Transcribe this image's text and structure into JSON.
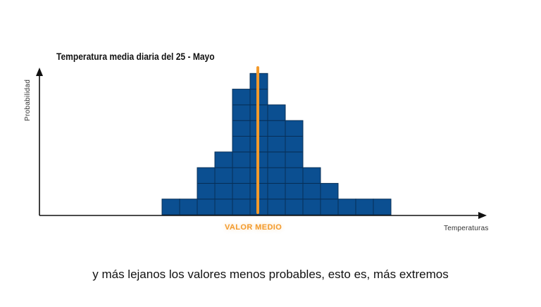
{
  "chart_data": {
    "type": "bar",
    "title": "Temperatura media diaria del 25 - Mayo",
    "ylabel": "Probabilidad",
    "xlabel": "Temperaturas",
    "categories": [
      "",
      "",
      "",
      "",
      "",
      "",
      "",
      "",
      "",
      "",
      "",
      "",
      "",
      ""
    ],
    "values": [
      1,
      1,
      3,
      4,
      8,
      9,
      7,
      6,
      3,
      2,
      1,
      1,
      1,
      0
    ],
    "block_color": "#0b4f91",
    "block_border": "#072f57",
    "grid": false,
    "marker": {
      "label": "VALOR MEDIO",
      "color": "#f39a2b"
    }
  },
  "caption": "y más lejanos los valores menos probables, esto es, más extremos"
}
